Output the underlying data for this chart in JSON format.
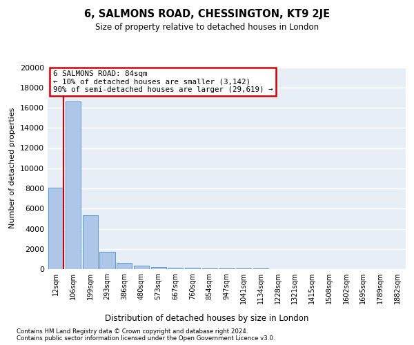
{
  "title": "6, SALMONS ROAD, CHESSINGTON, KT9 2JE",
  "subtitle": "Size of property relative to detached houses in London",
  "xlabel": "Distribution of detached houses by size in London",
  "ylabel": "Number of detached properties",
  "bar_color": "#aec6e8",
  "bar_edge_color": "#5b9bd5",
  "background_color": "#e8eef6",
  "annotation_box_color": "#cc0000",
  "vline_color": "#cc0000",
  "annotation_text_line1": "6 SALMONS ROAD: 84sqm",
  "annotation_text_line2": "← 10% of detached houses are smaller (3,142)",
  "annotation_text_line3": "90% of semi-detached houses are larger (29,619) →",
  "categories": [
    "12sqm",
    "106sqm",
    "199sqm",
    "293sqm",
    "386sqm",
    "480sqm",
    "573sqm",
    "667sqm",
    "760sqm",
    "854sqm",
    "947sqm",
    "1041sqm",
    "1134sqm",
    "1228sqm",
    "1321sqm",
    "1415sqm",
    "1508sqm",
    "1602sqm",
    "1695sqm",
    "1789sqm",
    "1882sqm"
  ],
  "values": [
    8100,
    16600,
    5300,
    1700,
    600,
    330,
    210,
    150,
    110,
    80,
    60,
    50,
    40,
    30,
    25,
    20,
    15,
    12,
    10,
    8,
    6
  ],
  "ylim": [
    0,
    20000
  ],
  "yticks": [
    0,
    2000,
    4000,
    6000,
    8000,
    10000,
    12000,
    14000,
    16000,
    18000,
    20000
  ],
  "footer_line1": "Contains HM Land Registry data © Crown copyright and database right 2024.",
  "footer_line2": "Contains public sector information licensed under the Open Government Licence v3.0.",
  "vline_x": 0.45
}
